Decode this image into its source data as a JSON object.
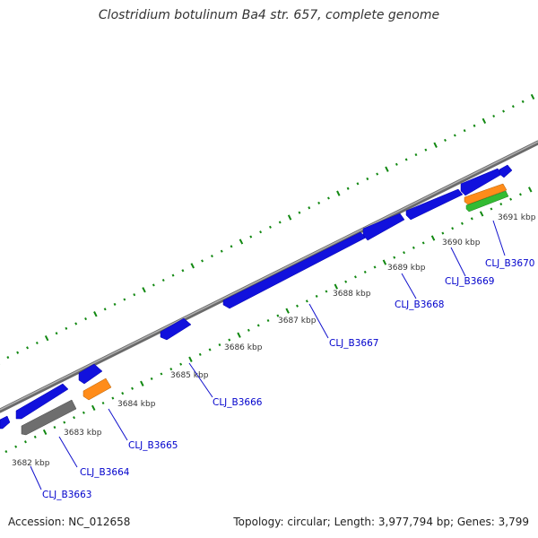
{
  "title": "Clostridium botulinum Ba4 str. 657, complete genome",
  "footer": {
    "accession": "Accession: NC_012658",
    "summary": "Topology: circular; Length: 3,977,794 bp; Genes: 3,799"
  },
  "colors": {
    "cds": "#1111dd",
    "gray_feature": "#6e6e6e",
    "orange_feature": "#ff8c1a",
    "green_feature": "#33bb33",
    "backbone": "#888888",
    "tick": "#118811",
    "label_link": "#0000cc"
  },
  "ticks": [
    {
      "label": "3682 kbp"
    },
    {
      "label": "3683 kbp"
    },
    {
      "label": "3684 kbp"
    },
    {
      "label": "3685 kbp"
    },
    {
      "label": "3686 kbp"
    },
    {
      "label": "3687 kbp"
    },
    {
      "label": "3688 kbp"
    },
    {
      "label": "3689 kbp"
    },
    {
      "label": "3690 kbp"
    },
    {
      "label": "3691 kbp"
    }
  ],
  "gene_labels": [
    {
      "name": "CLJ_B3663"
    },
    {
      "name": "CLJ_B3664"
    },
    {
      "name": "CLJ_B3665"
    },
    {
      "name": "CLJ_B3666"
    },
    {
      "name": "CLJ_B3667"
    },
    {
      "name": "CLJ_B3668"
    },
    {
      "name": "CLJ_B3669"
    },
    {
      "name": "CLJ_B3670"
    }
  ]
}
